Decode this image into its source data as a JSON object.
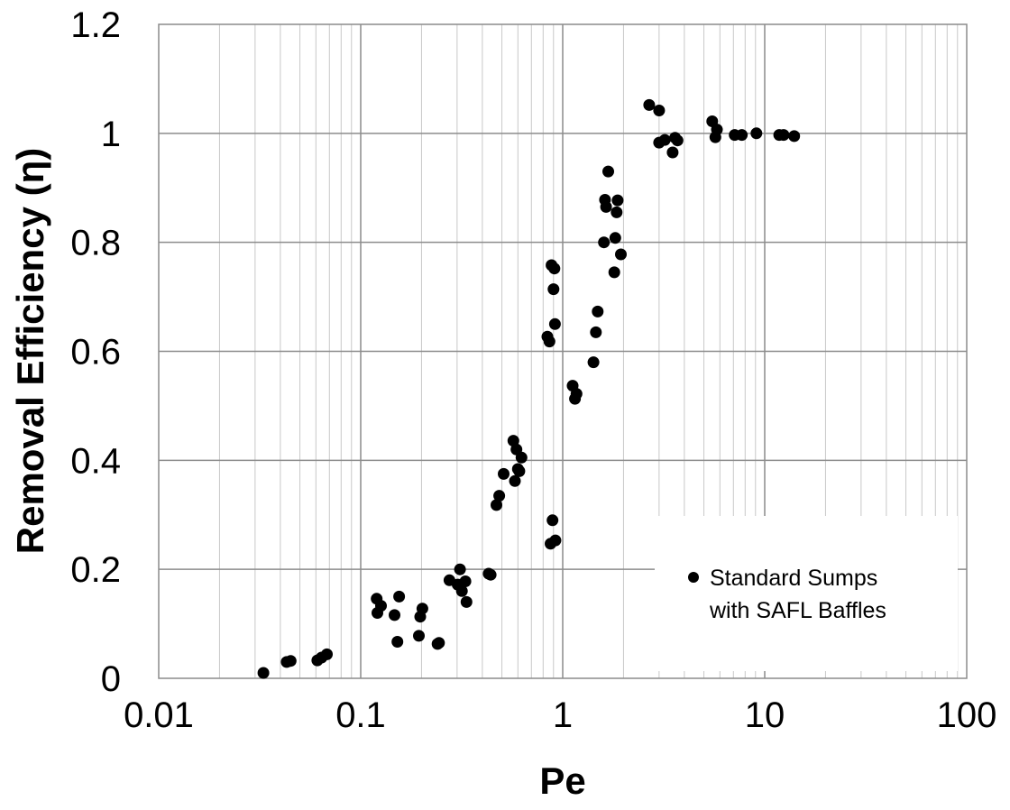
{
  "chart_data": {
    "type": "scatter",
    "xlabel": "Pe",
    "ylabel": "Removal Efficiency (η)",
    "x_scale": "log",
    "xlim": [
      0.01,
      100
    ],
    "ylim": [
      0,
      1.2
    ],
    "x_ticks": [
      "0.01",
      "0.1",
      "1",
      "10",
      "100"
    ],
    "y_ticks": [
      "0",
      "0.2",
      "0.4",
      "0.6",
      "0.8",
      "1",
      "1.2"
    ],
    "grid": true,
    "legend_position": "bottom-right",
    "marker_color": "#000000",
    "series": [
      {
        "name_line1": "Standard Sumps",
        "name_line2": "with SAFL Baffles",
        "points": [
          [
            0.033,
            0.01
          ],
          [
            0.043,
            0.03
          ],
          [
            0.045,
            0.032
          ],
          [
            0.061,
            0.033
          ],
          [
            0.064,
            0.038
          ],
          [
            0.068,
            0.044
          ],
          [
            0.12,
            0.146
          ],
          [
            0.121,
            0.12
          ],
          [
            0.126,
            0.133
          ],
          [
            0.147,
            0.116
          ],
          [
            0.155,
            0.15
          ],
          [
            0.152,
            0.067
          ],
          [
            0.194,
            0.078
          ],
          [
            0.197,
            0.113
          ],
          [
            0.202,
            0.128
          ],
          [
            0.24,
            0.063
          ],
          [
            0.244,
            0.065
          ],
          [
            0.275,
            0.18
          ],
          [
            0.302,
            0.172
          ],
          [
            0.31,
            0.2
          ],
          [
            0.317,
            0.16
          ],
          [
            0.33,
            0.178
          ],
          [
            0.334,
            0.14
          ],
          [
            0.43,
            0.192
          ],
          [
            0.44,
            0.19
          ],
          [
            0.47,
            0.318
          ],
          [
            0.485,
            0.335
          ],
          [
            0.51,
            0.375
          ],
          [
            0.57,
            0.436
          ],
          [
            0.58,
            0.362
          ],
          [
            0.59,
            0.42
          ],
          [
            0.6,
            0.384
          ],
          [
            0.61,
            0.38
          ],
          [
            0.625,
            0.405
          ],
          [
            0.84,
            0.627
          ],
          [
            0.86,
            0.618
          ],
          [
            0.87,
            0.247
          ],
          [
            0.88,
            0.758
          ],
          [
            0.89,
            0.29
          ],
          [
            0.9,
            0.714
          ],
          [
            0.91,
            0.752
          ],
          [
            0.915,
            0.65
          ],
          [
            0.92,
            0.253
          ],
          [
            1.12,
            0.537
          ],
          [
            1.15,
            0.513
          ],
          [
            1.17,
            0.522
          ],
          [
            1.42,
            0.58
          ],
          [
            1.46,
            0.635
          ],
          [
            1.49,
            0.673
          ],
          [
            1.6,
            0.8
          ],
          [
            1.62,
            0.878
          ],
          [
            1.64,
            0.865
          ],
          [
            1.68,
            0.93
          ],
          [
            1.8,
            0.745
          ],
          [
            1.82,
            0.808
          ],
          [
            1.85,
            0.855
          ],
          [
            1.87,
            0.877
          ],
          [
            1.94,
            0.778
          ],
          [
            2.68,
            1.052
          ],
          [
            3.0,
            1.042
          ],
          [
            3.0,
            0.983
          ],
          [
            3.2,
            0.988
          ],
          [
            3.5,
            0.965
          ],
          [
            3.6,
            0.992
          ],
          [
            3.7,
            0.987
          ],
          [
            5.5,
            1.022
          ],
          [
            5.7,
            0.993
          ],
          [
            5.8,
            1.007
          ],
          [
            7.1,
            0.997
          ],
          [
            7.7,
            0.997
          ],
          [
            9.1,
            1.0
          ],
          [
            11.8,
            0.997
          ],
          [
            12.4,
            0.997
          ],
          [
            14.0,
            0.995
          ]
        ]
      }
    ]
  }
}
